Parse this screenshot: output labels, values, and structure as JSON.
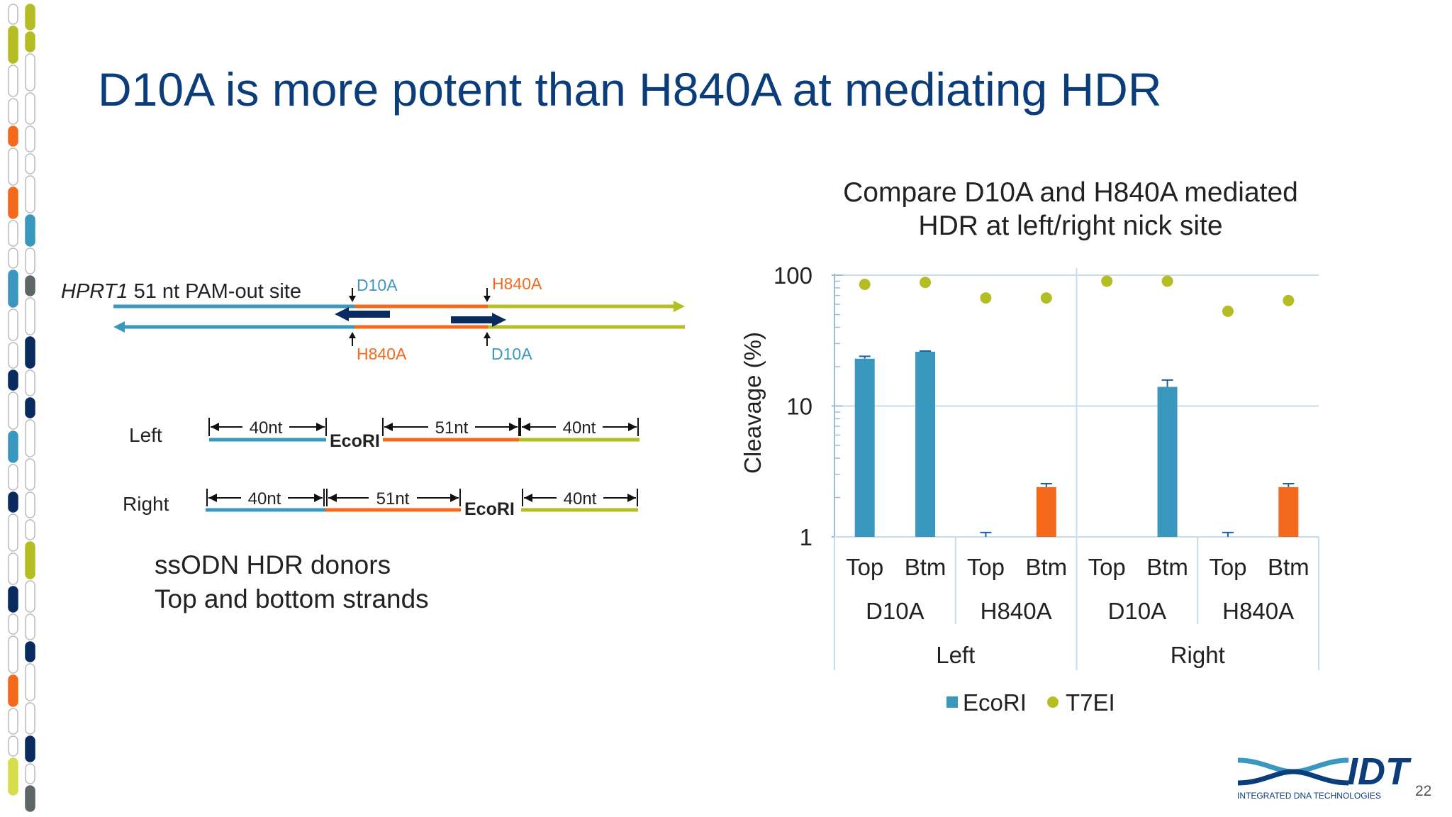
{
  "slide": {
    "title": "D10A is more potent than H840A at mediating HDR",
    "page_number": "22",
    "logo_text": "IDT",
    "logo_subtext": "INTEGRATED DNA TECHNOLOGIES"
  },
  "diagram": {
    "site_label_italic": "HPRT1",
    "site_label_rest": "51 nt PAM-out site",
    "top_labels": [
      "D10A",
      "H840A"
    ],
    "bottom_labels": [
      "H840A",
      "D10A"
    ],
    "rows": [
      {
        "name": "Left",
        "segments": [
          "40nt",
          "51nt",
          "40nt"
        ],
        "site": "EcoRI"
      },
      {
        "name": "Right",
        "segments": [
          "40nt",
          "51nt",
          "40nt"
        ],
        "site": "EcoRI"
      }
    ],
    "donors_line1": "ssODN HDR donors",
    "donors_line2": "Top and bottom strands"
  },
  "colors": {
    "title": "#0b3d7a",
    "blue": "#3a97bd",
    "orange": "#f4691c",
    "yellow_green": "#b5bd25",
    "navy": "#0a2b5e",
    "gridline": "#c8dced"
  },
  "chart_data": {
    "type": "bar",
    "title": "Compare D10A and H840A mediated HDR at left/right nick site",
    "title_line1": "Compare D10A and H840A mediated",
    "title_line2": "HDR at left/right nick site",
    "ylabel": "Cleavage (%)",
    "yscale": "log",
    "ylim": [
      1,
      100
    ],
    "yticks": [
      "1",
      "10",
      "100"
    ],
    "grid": true,
    "legend_position": "bottom",
    "categories": [
      "Top",
      "Btm",
      "Top",
      "Btm",
      "Top",
      "Btm",
      "Top",
      "Btm"
    ],
    "groups": [
      "D10A",
      "H840A",
      "D10A",
      "H840A"
    ],
    "sides": [
      "Left",
      "Right"
    ],
    "series": [
      {
        "name": "EcoRI",
        "kind": "bar",
        "color": "#3a97bd",
        "highlight_color": "#f4691c",
        "values": [
          23,
          26,
          0,
          2.4,
          0,
          14,
          0,
          2.4
        ],
        "error": [
          1.0,
          0.3,
          0.1,
          0.15,
          0,
          1.8,
          0.7,
          0.15
        ],
        "bar_colors": [
          "#3a97bd",
          "#3a97bd",
          "#f4691c",
          "#f4691c",
          "#3a97bd",
          "#3a97bd",
          "#f4691c",
          "#f4691c"
        ]
      },
      {
        "name": "T7EI",
        "kind": "point",
        "color": "#b5bd25",
        "values": [
          85,
          88,
          67,
          67,
          90,
          90,
          53,
          64
        ]
      }
    ]
  }
}
